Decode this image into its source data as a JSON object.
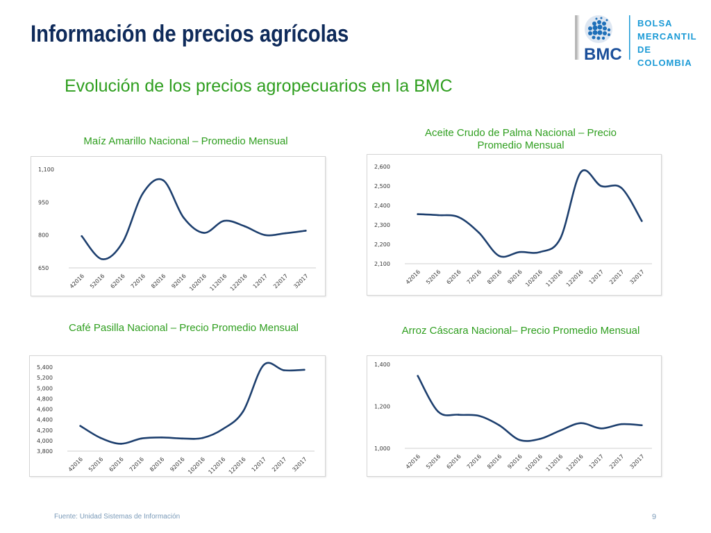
{
  "slide": {
    "title": "Información de precios agrícolas",
    "subtitle": "Evolución de los precios agropecuarios en la BMC",
    "footer": "Fuente: Unidad Sistemas de Información",
    "page_number": "9"
  },
  "logo": {
    "brand": "BMC",
    "line1": "BOLSA",
    "line2": "MERCANTIL",
    "line3": "DE COLOMBIA"
  },
  "colors": {
    "title": "#0e2a5a",
    "subtitle": "#2e9e1e",
    "line": "#1d3f6e",
    "logo_blue": "#1a9ad6"
  },
  "chart_data": [
    {
      "type": "line",
      "title": "Maíz Amarillo Nacional – Promedio Mensual",
      "x": [
        "42016",
        "52016",
        "62016",
        "72016",
        "82016",
        "92016",
        "102016",
        "112016",
        "122016",
        "12017",
        "22017",
        "32017"
      ],
      "y_ticks": [
        "650",
        "800",
        "950",
        "1,100"
      ],
      "ylim": [
        650,
        1100
      ],
      "series": [
        {
          "values": [
            795,
            690,
            765,
            990,
            1050,
            880,
            810,
            865,
            840,
            800,
            808,
            820
          ]
        }
      ]
    },
    {
      "type": "line",
      "title": "Aceite Crudo de Palma Nacional – Precio Promedio Mensual",
      "x": [
        "42016",
        "52016",
        "62016",
        "72016",
        "82016",
        "92016",
        "102016",
        "112016",
        "122016",
        "12017",
        "22017",
        "32017"
      ],
      "y_ticks": [
        "2,100",
        "2,200",
        "2,300",
        "2,400",
        "2,500",
        "2,600"
      ],
      "ylim": [
        2100,
        2600
      ],
      "series": [
        {
          "values": [
            2355,
            2350,
            2340,
            2260,
            2140,
            2160,
            2160,
            2230,
            2570,
            2500,
            2490,
            2320
          ]
        }
      ]
    },
    {
      "type": "line",
      "title": "Café Pasilla Nacional – Precio Promedio Mensual",
      "x": [
        "42016",
        "52016",
        "62016",
        "72016",
        "82016",
        "92016",
        "102016",
        "112016",
        "122016",
        "12017",
        "22017",
        "32017"
      ],
      "y_ticks": [
        "3,800",
        "4,000",
        "4,200",
        "4,400",
        "4,600",
        "4,800",
        "5,000",
        "5,200",
        "5,400"
      ],
      "ylim": [
        3800,
        5400
      ],
      "series": [
        {
          "values": [
            4280,
            4050,
            3940,
            4040,
            4060,
            4040,
            4050,
            4220,
            4560,
            5440,
            5340,
            5350
          ]
        }
      ]
    },
    {
      "type": "line",
      "title": "Arroz Cáscara Nacional– Precio Promedio Mensual",
      "x": [
        "42016",
        "52016",
        "62016",
        "72016",
        "82016",
        "92016",
        "102016",
        "112016",
        "122016",
        "12017",
        "22017",
        "32017"
      ],
      "y_ticks": [
        "1,000",
        "1,200",
        "1,400"
      ],
      "ylim": [
        1000,
        1400
      ],
      "series": [
        {
          "values": [
            1345,
            1175,
            1160,
            1155,
            1110,
            1040,
            1045,
            1085,
            1120,
            1095,
            1115,
            1110
          ]
        }
      ]
    }
  ]
}
